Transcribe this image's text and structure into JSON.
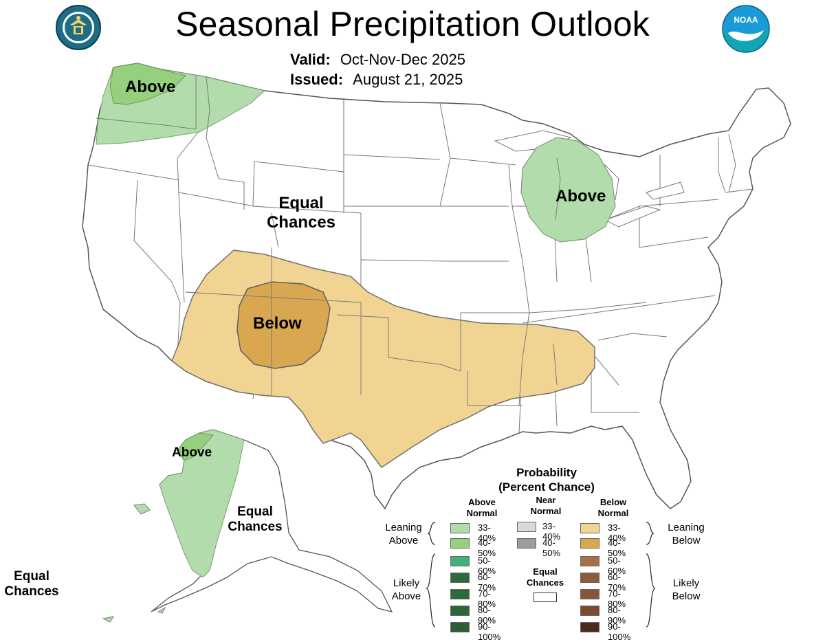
{
  "title": "Seasonal Precipitation Outlook",
  "valid": {
    "label": "Valid:",
    "value": "Oct-Nov-Dec 2025"
  },
  "issued": {
    "label": "Issued:",
    "value": "August 21, 2025"
  },
  "logos": {
    "left": "department-of-commerce-seal",
    "right": "noaa-logo"
  },
  "map_labels": {
    "pacific_nw": "Above",
    "great_lakes": "Above",
    "four_corners": "Below",
    "equal_chances_central_1": "Equal",
    "equal_chances_central_2": "Chances",
    "alaska_above": "Above",
    "alaska_ec_1": "Equal",
    "alaska_ec_2": "Chances",
    "hawaii_ec_1": "Equal",
    "hawaii_ec_2": "Chances"
  },
  "legend": {
    "title_1": "Probability",
    "title_2": "(Percent Chance)",
    "above_head_1": "Above",
    "above_head_2": "Normal",
    "near_head_1": "Near",
    "near_head_2": "Normal",
    "below_head_1": "Below",
    "below_head_2": "Normal",
    "leaning_above_1": "Leaning",
    "leaning_above_2": "Above",
    "likely_above_1": "Likely",
    "likely_above_2": "Above",
    "leaning_below_1": "Leaning",
    "leaning_below_2": "Below",
    "likely_below_1": "Likely",
    "likely_below_2": "Below",
    "equal_1": "Equal",
    "equal_2": "Chances",
    "above": [
      {
        "range": "33-40%",
        "color": "#b3dcac"
      },
      {
        "range": "40-50%",
        "color": "#94d07d"
      },
      {
        "range": "50-60%",
        "color": "#43b078"
      },
      {
        "range": "60-70%",
        "color": "#2e6a3c"
      },
      {
        "range": "70-80%",
        "color": "#2c6a3a"
      },
      {
        "range": "80-90%",
        "color": "#2c673a"
      },
      {
        "range": "90-100%",
        "color": "#2f5b36"
      }
    ],
    "near": [
      {
        "range": "33-40%",
        "color": "#d9d9d9"
      },
      {
        "range": "40-50%",
        "color": "#9c9c9c"
      }
    ],
    "below": [
      {
        "range": "33-40%",
        "color": "#f1d492"
      },
      {
        "range": "40-50%",
        "color": "#d8a750"
      },
      {
        "range": "50-60%",
        "color": "#a5714a"
      },
      {
        "range": "60-70%",
        "color": "#8f5a3a"
      },
      {
        "range": "70-80%",
        "color": "#87543a"
      },
      {
        "range": "80-90%",
        "color": "#7b4a30"
      },
      {
        "range": "90-100%",
        "color": "#4a2a1f"
      }
    ]
  },
  "colors": {
    "above_33_40": "#b3dcac",
    "above_40_50": "#94d07d",
    "below_33_40": "#f1d492",
    "below_40_50": "#d8a750",
    "state_lines": "#777777"
  }
}
